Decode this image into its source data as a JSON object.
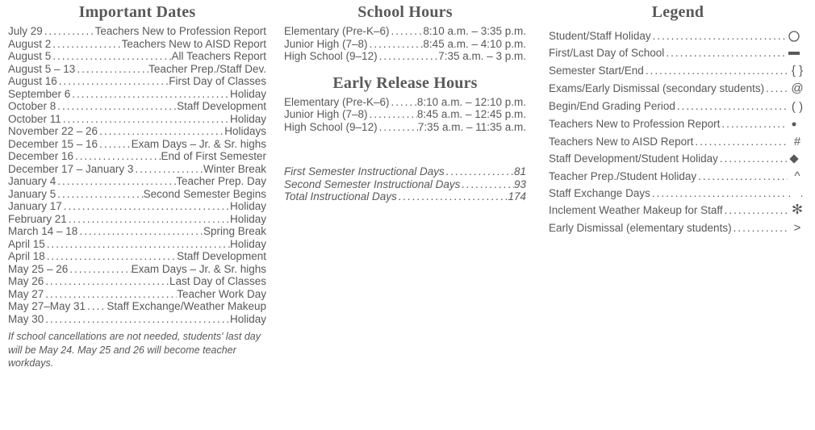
{
  "colors": {
    "text": "#58595b",
    "bg": "#ffffff"
  },
  "fontsizes": {
    "heading": 20,
    "body": 13.5,
    "note": 12.5
  },
  "importantDates": {
    "title": "Important Dates",
    "items": [
      {
        "date": "July 29",
        "desc": "Teachers New to Profession Report"
      },
      {
        "date": "August 2",
        "desc": "Teachers New to AISD Report"
      },
      {
        "date": "August 5",
        "desc": "All Teachers Report"
      },
      {
        "date": "August 5 – 13",
        "desc": "Teacher Prep./Staff Dev."
      },
      {
        "date": "August 16",
        "desc": "First Day of Classes"
      },
      {
        "date": "September 6",
        "desc": "Holiday"
      },
      {
        "date": "October 8",
        "desc": "Staff Development"
      },
      {
        "date": "October 11",
        "desc": "Holiday"
      },
      {
        "date": "November 22 – 26",
        "desc": "Holidays"
      },
      {
        "date": "December 15 – 16",
        "desc": "Exam Days – Jr. & Sr. highs"
      },
      {
        "date": "December 16",
        "desc": "End of First Semester"
      },
      {
        "date": "December 17 – January 3",
        "desc": "Winter Break"
      },
      {
        "date": "January 4",
        "desc": "Teacher Prep. Day"
      },
      {
        "date": "January 5",
        "desc": "Second Semester Begins"
      },
      {
        "date": "January 17",
        "desc": "Holiday"
      },
      {
        "date": "February 21",
        "desc": "Holiday"
      },
      {
        "date": "March 14 – 18",
        "desc": "Spring Break"
      },
      {
        "date": "April 15",
        "desc": "Holiday"
      },
      {
        "date": "April 18",
        "desc": "Staff Development"
      },
      {
        "date": "May 25 – 26",
        "desc": "Exam Days – Jr. & Sr. highs"
      },
      {
        "date": "May 26",
        "desc": "Last Day of Classes"
      },
      {
        "date": "May 27",
        "desc": "Teacher Work Day"
      },
      {
        "date": "May 27–May 31",
        "desc": "Staff Exchange/Weather Makeup"
      },
      {
        "date": "May 30",
        "desc": "Holiday"
      }
    ],
    "note": "If school cancellations are not needed, students' last day will be May 24.  May 25 and 26 will become teacher workdays."
  },
  "schoolHours": {
    "title": "School Hours",
    "items": [
      {
        "level": "Elementary (Pre-K–6)",
        "hours": "8:10 a.m. – 3:35 p.m."
      },
      {
        "level": "Junior High (7–8)",
        "hours": "8:45 a.m. – 4:10 p.m."
      },
      {
        "level": "High School (9–12)",
        "hours": "7:35 a.m. – 3 p.m."
      }
    ]
  },
  "earlyRelease": {
    "title": "Early Release Hours",
    "items": [
      {
        "level": "Elementary (Pre-K–6)",
        "hours": "8:10 a.m. – 12:10 p.m."
      },
      {
        "level": "Junior High (7–8)",
        "hours": "8:45 a.m. – 12:45 p.m."
      },
      {
        "level": "High School (9–12)",
        "hours": "7:35 a.m. – 11:35 a.m."
      }
    ]
  },
  "instructional": {
    "items": [
      {
        "label": "First Semester Instructional Days",
        "value": "81"
      },
      {
        "label": "Second Semester Instructional Days",
        "value": "93"
      },
      {
        "label": "Total Instructional Days",
        "value": "174"
      }
    ]
  },
  "legend": {
    "title": "Legend",
    "items": [
      {
        "label": "Student/Staff Holiday",
        "sym": "circle"
      },
      {
        "label": "First/Last Day of School",
        "sym": "bar"
      },
      {
        "label": "Semester Start/End",
        "sym": "braces"
      },
      {
        "label": "Exams/Early Dismissal (secondary students)",
        "sym": "at"
      },
      {
        "label": "Begin/End Grading Period",
        "sym": "parens"
      },
      {
        "label": "Teachers New to Profession Report",
        "sym": "bullet"
      },
      {
        "label": "Teachers New to AISD Report",
        "sym": "hash"
      },
      {
        "label": "Staff Development/Student Holiday",
        "sym": "diamond"
      },
      {
        "label": "Teacher Prep./Student Holiday",
        "sym": "caret"
      },
      {
        "label": "Staff Exchange Days",
        "sym": "twodots"
      },
      {
        "label": "Inclement Weather Makeup for Staff",
        "sym": "asterisk"
      },
      {
        "label": "Early Dismissal (elementary students)",
        "sym": "gt"
      }
    ]
  }
}
